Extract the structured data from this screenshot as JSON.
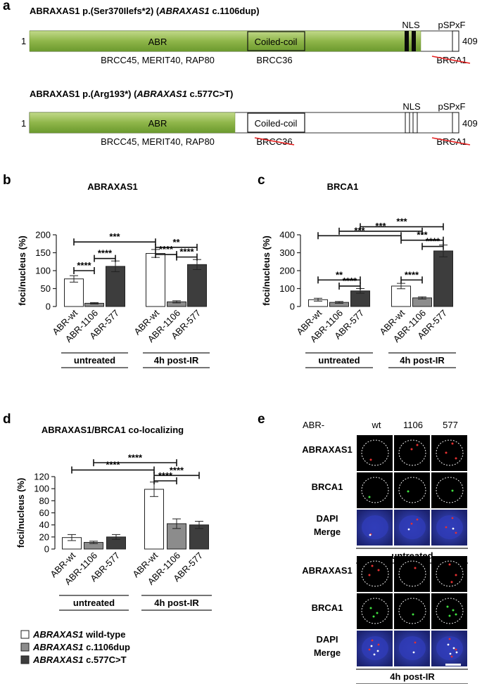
{
  "colors": {
    "wt": "#ffffff",
    "c1106": "#8c8c8c",
    "c577": "#3d3d3d",
    "abr_domain_top": "#c2d98a",
    "abr_domain_bottom": "#6b9a2e",
    "nucleus_bg": "#000000",
    "dapi": "#2f3bb5",
    "sig_red": "#e53030",
    "strike_red": "#e52020"
  },
  "panel_a": {
    "letter": "a",
    "proteins": [
      {
        "title_pre": "ABRAXAS1 p.(Ser370Ilefs*2) (",
        "title_gene": "ABRAXAS1",
        "title_post": " c.1106dup)",
        "start": "1",
        "end": "409",
        "domain_abr": "ABR",
        "domain_cc": "Coiled-coil",
        "nls": "NLS",
        "motif": "pSPxF",
        "binders_abr": "BRCC45, MERIT40, RAP80",
        "binder_cc": "BRCC36",
        "binder_motif": "BRCA1"
      },
      {
        "title_pre": "ABRAXAS1 p.(Arg193*) (",
        "title_gene": "ABRAXAS1",
        "title_post": " c.577C>T)",
        "start": "1",
        "end": "409",
        "domain_abr": "ABR",
        "domain_cc": "Coiled-coil",
        "nls": "NLS",
        "motif": "pSPxF",
        "binders_abr": "BRCC45, MERIT40, RAP80",
        "binder_cc": "BRCC36",
        "binder_motif": "BRCA1"
      }
    ]
  },
  "chart_data": [
    {
      "type": "bar",
      "panel": "b",
      "title": "ABRAXAS1",
      "ylabel": "foci/nucleus (%)",
      "ylim": [
        0,
        200
      ],
      "yticks": [
        "0",
        "50",
        "100",
        "150",
        "200"
      ],
      "categories": [
        "ABR-wt",
        "ABR-1106",
        "ABR-577",
        "ABR-wt",
        "ABR-1106",
        "ABR-577"
      ],
      "groups": [
        "untreated",
        "4h post-IR"
      ],
      "values": [
        77,
        9,
        112,
        148,
        13,
        117
      ],
      "errors": [
        9,
        2,
        15,
        11,
        3,
        14
      ],
      "significance": [
        {
          "from": 0,
          "to": 3,
          "y": 180,
          "label": "***"
        },
        {
          "from": 0,
          "to": 1,
          "y": 100,
          "label": "****"
        },
        {
          "from": 1,
          "to": 2,
          "y": 134,
          "label": "****"
        },
        {
          "from": 3,
          "to": 5,
          "y": 165,
          "label": "**"
        },
        {
          "from": 3,
          "to": 4,
          "y": 145,
          "label": "****"
        },
        {
          "from": 4,
          "to": 5,
          "y": 138,
          "label": "****"
        }
      ]
    },
    {
      "type": "bar",
      "panel": "c",
      "title": "BRCA1",
      "ylabel": "foci/nucleus (%)",
      "ylim": [
        0,
        400
      ],
      "yticks": [
        "0",
        "100",
        "200",
        "300",
        "400"
      ],
      "categories": [
        "ABR-wt",
        "ABR-1106",
        "ABR-577",
        "ABR-wt",
        "ABR-1106",
        "ABR-577"
      ],
      "groups": [
        "untreated",
        "4h post-IR"
      ],
      "values": [
        38,
        23,
        87,
        114,
        48,
        310
      ],
      "errors": [
        8,
        5,
        13,
        15,
        6,
        33
      ],
      "significance": [
        {
          "from": 2,
          "to": 5,
          "y": 445,
          "label": "***"
        },
        {
          "from": 1,
          "to": 4,
          "y": 420,
          "label": "***"
        },
        {
          "from": 0,
          "to": 3,
          "y": 395,
          "label": "***"
        },
        {
          "from": 0,
          "to": 2,
          "y": 148,
          "label": "**"
        },
        {
          "from": 1,
          "to": 2,
          "y": 114,
          "label": "****"
        },
        {
          "from": 3,
          "to": 5,
          "y": 370,
          "label": "***"
        },
        {
          "from": 3,
          "to": 4,
          "y": 148,
          "label": "****"
        },
        {
          "from": 4,
          "to": 5,
          "y": 335,
          "label": "****"
        }
      ]
    },
    {
      "type": "bar",
      "panel": "d",
      "title": "ABRAXAS1/BRCA1 co-localizing",
      "ylabel": "foci/nucleus (%)",
      "ylim": [
        0,
        120
      ],
      "yticks": [
        "0",
        "20",
        "40",
        "60",
        "80",
        "100",
        "120"
      ],
      "categories": [
        "ABR-wt",
        "ABR-1106",
        "ABR-577",
        "ABR-wt",
        "ABR-1106",
        "ABR-577"
      ],
      "groups": [
        "untreated",
        "4h post-IR"
      ],
      "values": [
        19,
        11,
        20,
        99,
        42,
        40
      ],
      "errors": [
        5,
        2,
        4,
        12,
        8,
        6
      ],
      "significance": [
        {
          "from": 1,
          "to": 4,
          "y": 143,
          "label": "****"
        },
        {
          "from": 0,
          "to": 3,
          "y": 131,
          "label": "****"
        },
        {
          "from": 3,
          "to": 5,
          "y": 122,
          "label": "****"
        },
        {
          "from": 3,
          "to": 4,
          "y": 113,
          "label": "****"
        }
      ]
    }
  ],
  "legend": [
    {
      "gene": "ABRAXAS1",
      "rest": " wild-type",
      "color_key": "wt"
    },
    {
      "gene": "ABRAXAS1",
      "rest": " c.1106dup",
      "color_key": "c1106"
    },
    {
      "gene": "ABRAXAS1",
      "rest": " c.577C>T",
      "color_key": "c577"
    }
  ],
  "panel_e": {
    "letter": "e",
    "prefix": "ABR-",
    "columns": [
      "wt",
      "1106",
      "577"
    ],
    "blocks": [
      {
        "condition": "untreated",
        "rows": [
          {
            "label": "ABRAXAS1"
          },
          {
            "label": "BRCA1"
          },
          {
            "label": "DAPI\nMerge"
          }
        ]
      },
      {
        "condition": "4h post-IR",
        "rows": [
          {
            "label": "ABRAXAS1"
          },
          {
            "label": "BRCA1"
          },
          {
            "label": "DAPI\nMerge"
          }
        ]
      }
    ]
  }
}
